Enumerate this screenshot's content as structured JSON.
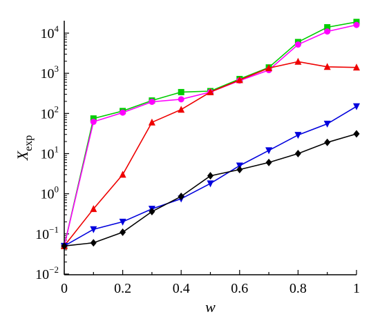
{
  "chart_data": {
    "type": "line",
    "title": "",
    "xlabel": "w",
    "ylabel": {
      "base": "X",
      "subscript": "exp"
    },
    "x_ticks": [
      {
        "value": 0,
        "label": "0"
      },
      {
        "value": 0.2,
        "label": "0.2"
      },
      {
        "value": 0.4,
        "label": "0.4"
      },
      {
        "value": 0.6,
        "label": "0.6"
      },
      {
        "value": 0.8,
        "label": "0.8"
      },
      {
        "value": 1,
        "label": "1"
      }
    ],
    "y_scale": "log",
    "y_ticks": [
      {
        "value": 0.01,
        "base": "10",
        "exp": "−2"
      },
      {
        "value": 0.1,
        "base": "10",
        "exp": "−1"
      },
      {
        "value": 1,
        "base": "10",
        "exp": "0"
      },
      {
        "value": 10,
        "base": "10",
        "exp": "1"
      },
      {
        "value": 100,
        "base": "10",
        "exp": "2"
      },
      {
        "value": 1000,
        "base": "10",
        "exp": "3"
      },
      {
        "value": 10000,
        "base": "10",
        "exp": "4"
      }
    ],
    "xlim": [
      0,
      1
    ],
    "ylim": [
      0.01,
      40000
    ],
    "grid": false,
    "x": [
      0,
      0.1,
      0.2,
      0.3,
      0.4,
      0.5,
      0.6,
      0.7,
      0.8,
      0.9,
      1.0
    ],
    "series": [
      {
        "color": "#00cc00",
        "marker": "square",
        "values": [
          0.05,
          75,
          115,
          210,
          340,
          360,
          720,
          1400,
          6000,
          14000,
          19000
        ]
      },
      {
        "color": "#ff00ff",
        "marker": "circle",
        "values": [
          0.05,
          62,
          105,
          195,
          225,
          340,
          660,
          1200,
          5200,
          11000,
          16000
        ]
      },
      {
        "color": "#ee0000",
        "marker": "triangle-up",
        "values": [
          0.05,
          0.42,
          3,
          60,
          125,
          340,
          680,
          1350,
          1950,
          1450,
          1400
        ]
      },
      {
        "color": "#0000dd",
        "marker": "triangle-down",
        "values": [
          0.05,
          0.13,
          0.2,
          0.42,
          0.75,
          1.8,
          5,
          12,
          29,
          55,
          150
        ]
      },
      {
        "color": "#000000",
        "marker": "diamond",
        "values": [
          0.05,
          0.06,
          0.11,
          0.36,
          0.86,
          2.8,
          4,
          6,
          10,
          19,
          31
        ]
      }
    ]
  }
}
